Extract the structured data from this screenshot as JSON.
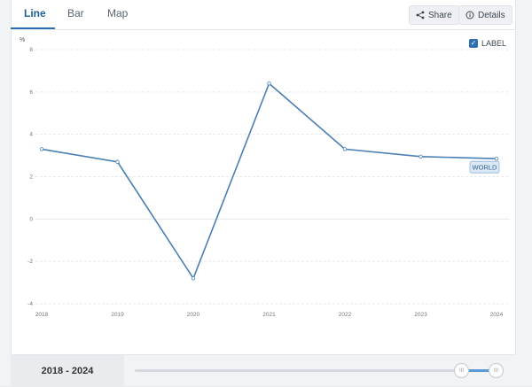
{
  "tabs": [
    {
      "label": "Line",
      "active": true
    },
    {
      "label": "Bar",
      "active": false
    },
    {
      "label": "Map",
      "active": false
    }
  ],
  "toolbar": {
    "share_label": "Share",
    "details_label": "Details"
  },
  "legend": {
    "label": "LABEL",
    "checked": true
  },
  "chart_data": {
    "type": "line",
    "ylabel": "%",
    "ylim": [
      -4,
      8
    ],
    "yticks": [
      "8",
      "6",
      "4",
      "2",
      "0",
      "-2",
      "-4"
    ],
    "x": [
      "2018",
      "2019",
      "2020",
      "2021",
      "2022",
      "2023",
      "2024"
    ],
    "series": [
      {
        "name": "WORLD",
        "values": [
          3.3,
          2.7,
          -2.8,
          6.4,
          3.3,
          2.95,
          2.85
        ],
        "color": "#4a7fb5"
      }
    ],
    "grid": true
  },
  "range": {
    "label": "2018 - 2024",
    "handle_left": "III",
    "handle_right": "III"
  },
  "colors": {
    "accent": "#2c6fb3",
    "line": "#4a7fb5"
  }
}
